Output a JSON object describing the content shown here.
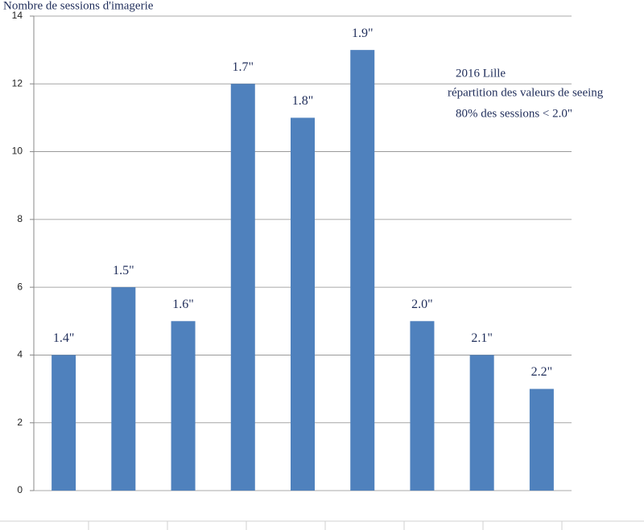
{
  "chart_data": {
    "type": "bar",
    "y_label": "Nombre de sessions d'imagerie",
    "categories": [
      "1.4\"",
      "1.5\"",
      "1.6\"",
      "1.7\"",
      "1.8\"",
      "1.9\"",
      "2.0\"",
      "2.1\"",
      "2.2\""
    ],
    "values": [
      4,
      6,
      5,
      12,
      11,
      13,
      5,
      4,
      3
    ],
    "color": "#4f81bd",
    "ylim": [
      0,
      14
    ],
    "yticks": [
      0,
      2,
      4,
      6,
      8,
      10,
      12,
      14
    ],
    "grid": true,
    "annotations": [
      "2016 Lille",
      "répartition des valeurs de seeing",
      "80% des sessions < 2.0\""
    ]
  }
}
